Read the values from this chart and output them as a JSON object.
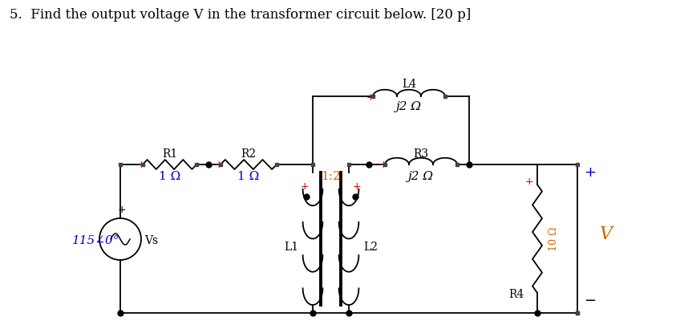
{
  "title": "5.  Find the output voltage V in the transformer circuit below. [20 p]",
  "title_fontsize": 12,
  "bg_color": "#ffffff",
  "source_label": "115∠0°",
  "vs_label": "Vs",
  "r1_label": "R1",
  "r1_val": "1 Ω",
  "r2_label": "R2",
  "r2_val": "1 Ω",
  "r3_label": "R3",
  "r3_val": "j2 Ω",
  "r4_label": "R4",
  "r4_val": "10 Ω",
  "l1_label": "L1",
  "l2_label": "L2",
  "l4_label": "L4",
  "l4_val": "j2 Ω",
  "transformer_ratio": "1:2",
  "v_label": "V",
  "black": "#000000",
  "red": "#cc0000",
  "blue": "#0000cc",
  "orange": "#cc6600"
}
